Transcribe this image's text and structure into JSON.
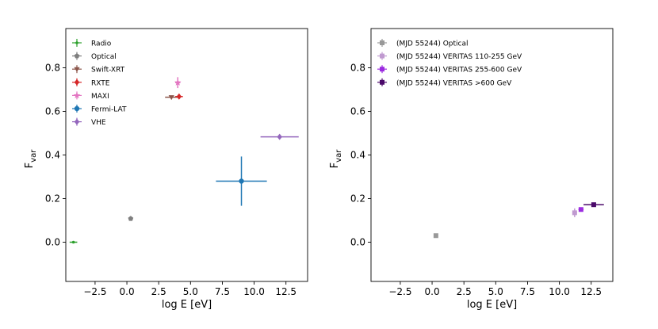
{
  "colors": {
    "Radio": "#2ca02c",
    "Optical": "#7f7f7f",
    "Swift-XRT": "#8c564b",
    "RXTE": "#d62728",
    "MAXI": "#e377c2",
    "Fermi-LAT": "#1f77b4",
    "VHE": "#9467bd",
    "Optical55244": "#999999",
    "V110": "#c09ad0",
    "V255": "#9b2be0",
    "V600": "#4b0a6a"
  },
  "chart_data": [
    {
      "type": "scatter",
      "title": "",
      "xlabel": "log E [eV]",
      "ylabel_main": "F",
      "ylabel_sub": "var",
      "xlim": [
        -4.8,
        14.2
      ],
      "ylim": [
        -0.18,
        0.98
      ],
      "xticks": [
        -2.5,
        0.0,
        2.5,
        5.0,
        7.5,
        10.0,
        12.5
      ],
      "xtick_labels": [
        "−2.5",
        "0.0",
        "2.5",
        "5.0",
        "7.5",
        "10.0",
        "12.5"
      ],
      "yticks": [
        0.0,
        0.2,
        0.4,
        0.6,
        0.8
      ],
      "ytick_labels": [
        "0.0",
        "0.2",
        "0.4",
        "0.6",
        "0.8"
      ],
      "legend_position": "top-left",
      "series": [
        {
          "name": "Radio",
          "color_key": "Radio",
          "marker": "point",
          "x": -4.2,
          "y": 0.0,
          "xerr": 0.3,
          "yerr": 0.0
        },
        {
          "name": "Optical",
          "color_key": "Optical",
          "marker": "pentagon",
          "x": 0.3,
          "y": 0.108,
          "xerr": 0.0,
          "yerr": 0.004
        },
        {
          "name": "Swift-XRT",
          "color_key": "Swift-XRT",
          "marker": "triangle_down",
          "x": 3.5,
          "y": 0.665,
          "xerr": 0.5,
          "yerr": 0.004
        },
        {
          "name": "RXTE",
          "color_key": "RXTE",
          "marker": "diamond",
          "x": 4.1,
          "y": 0.668,
          "xerr": 0.3,
          "yerr": 0.006
        },
        {
          "name": "MAXI",
          "color_key": "MAXI",
          "marker": "star",
          "x": 4.0,
          "y": 0.732,
          "xerr": 0.2,
          "yerr": 0.025
        },
        {
          "name": "Fermi-LAT",
          "color_key": "Fermi-LAT",
          "marker": "circle",
          "x": 9.0,
          "y": 0.28,
          "xerr": 2.0,
          "yerr": 0.113
        },
        {
          "name": "VHE",
          "color_key": "VHE",
          "marker": "diamond",
          "x": 12.0,
          "y": 0.483,
          "xerr": 1.5,
          "yerr": 0.006
        }
      ]
    },
    {
      "type": "scatter",
      "title": "",
      "xlabel": "log E [eV]",
      "ylabel_main": "F",
      "ylabel_sub": "var",
      "xlim": [
        -4.8,
        14.2
      ],
      "ylim": [
        -0.18,
        0.98
      ],
      "xticks": [
        -2.5,
        0.0,
        2.5,
        5.0,
        7.5,
        10.0,
        12.5
      ],
      "xtick_labels": [
        "−2.5",
        "0.0",
        "2.5",
        "5.0",
        "7.5",
        "10.0",
        "12.5"
      ],
      "yticks": [
        0.0,
        0.2,
        0.4,
        0.6,
        0.8
      ],
      "ytick_labels": [
        "0.0",
        "0.2",
        "0.4",
        "0.6",
        "0.8"
      ],
      "legend_position": "top-left",
      "series": [
        {
          "name": "(MJD 55244) Optical",
          "color_key": "Optical55244",
          "marker": "square",
          "x": 0.3,
          "y": 0.03,
          "xerr": 0.0,
          "yerr": 0.005
        },
        {
          "name": "(MJD 55244) VERITAS 110-255 GeV",
          "color_key": "V110",
          "marker": "square",
          "x": 11.2,
          "y": 0.135,
          "xerr": 0.18,
          "yerr": 0.02
        },
        {
          "name": "(MJD 55244) VERITAS 255-600 GeV",
          "color_key": "V255",
          "marker": "square",
          "x": 11.7,
          "y": 0.15,
          "xerr": 0.2,
          "yerr": 0.01
        },
        {
          "name": "(MJD 55244) VERITAS >600 GeV",
          "color_key": "V600",
          "marker": "square",
          "x": 12.7,
          "y": 0.172,
          "xerr": 0.8,
          "yerr": 0.01
        }
      ]
    }
  ]
}
